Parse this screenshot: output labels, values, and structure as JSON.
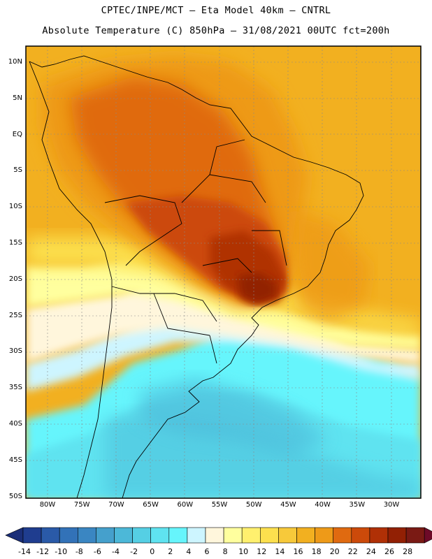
{
  "title_line1": "CPTEC/INPE/MCT –  Eta Model 40km – CNTRL",
  "title_line2": "Absolute Temperature (C) 850hPa – 31/08/2021 00UTC fct=200h",
  "lat_labels": [
    "10N",
    "5N",
    "EQ",
    "5S",
    "10S",
    "15S",
    "20S",
    "25S",
    "30S",
    "35S",
    "40S",
    "45S",
    "50S"
  ],
  "lon_labels": [
    "80W",
    "75W",
    "70W",
    "65W",
    "60W",
    "55W",
    "50W",
    "45W",
    "40W",
    "35W",
    "30W"
  ],
  "colorbar": {
    "ticks": [
      "-14",
      "-12",
      "-10",
      "-8",
      "-6",
      "-4",
      "-2",
      "0",
      "2",
      "4",
      "6",
      "8",
      "10",
      "12",
      "14",
      "16",
      "18",
      "20",
      "22",
      "24",
      "26",
      "28"
    ],
    "colors": [
      "#1f3d8f",
      "#2a5aa8",
      "#3272b8",
      "#3a86c2",
      "#45a0cc",
      "#4cb8d8",
      "#55cfe4",
      "#5fe3f0",
      "#66f5fc",
      "#cdf5ff",
      "#fff6dc",
      "#ffff9e",
      "#fff06e",
      "#fce04e",
      "#f7c93a",
      "#f2b020",
      "#ee9a18",
      "#e06a10",
      "#cc4a0a",
      "#b03006",
      "#922004",
      "#7a1a14"
    ],
    "low_color": "#1a2e78",
    "high_color": "#6e0a28"
  }
}
